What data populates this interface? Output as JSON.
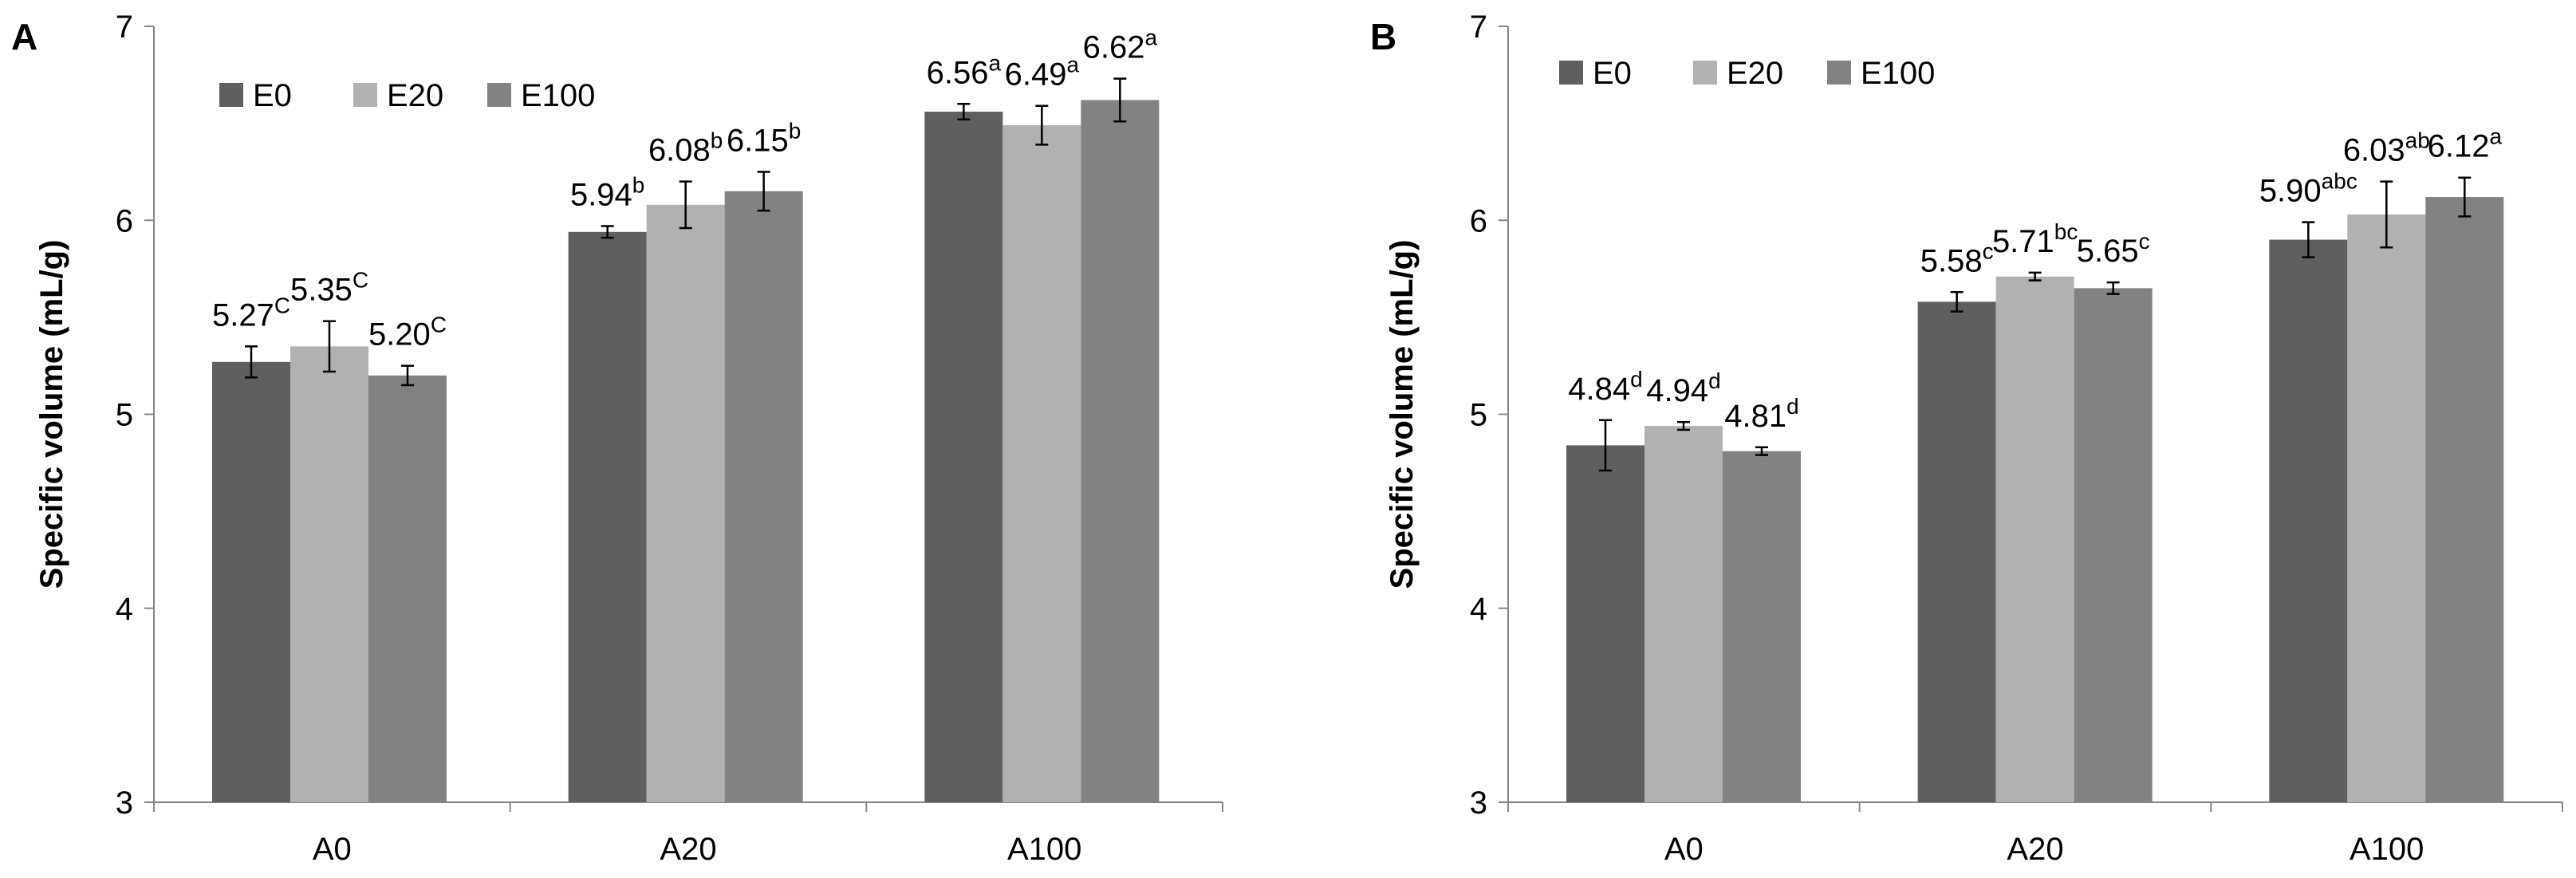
{
  "figure": {
    "y_axis_title": "Specific volume (mL/g)"
  },
  "chart_data": [
    {
      "type": "bar",
      "panel": "A",
      "title": "",
      "xlabel": "",
      "ylabel": "Specific volume (mL/g)",
      "ylim": [
        3,
        7
      ],
      "yticks": [
        3,
        4,
        5,
        6,
        7
      ],
      "legend_position": "top-left",
      "categories": [
        "A0",
        "A20",
        "A100"
      ],
      "series": [
        {
          "name": "E0",
          "color": "#5f5f5f",
          "values": [
            5.27,
            5.94,
            6.56
          ],
          "errors": [
            0.08,
            0.03,
            0.04
          ],
          "labels": [
            "5.27",
            "5.94",
            "6.56"
          ],
          "letters": [
            "C",
            "b",
            "a"
          ]
        },
        {
          "name": "E20",
          "color": "#b1b1b1",
          "values": [
            5.35,
            6.08,
            6.49
          ],
          "errors": [
            0.13,
            0.12,
            0.1
          ],
          "labels": [
            "5.35",
            "6.08",
            "6.49"
          ],
          "letters": [
            "C",
            "b",
            "a"
          ]
        },
        {
          "name": "E100",
          "color": "#828282",
          "values": [
            5.2,
            6.15,
            6.62
          ],
          "errors": [
            0.05,
            0.1,
            0.11
          ],
          "labels": [
            "5.20",
            "6.15",
            "6.62"
          ],
          "letters": [
            "C",
            "b",
            "a"
          ]
        }
      ]
    },
    {
      "type": "bar",
      "panel": "B",
      "title": "",
      "xlabel": "",
      "ylabel": "Specific volume (mL/g)",
      "ylim": [
        3,
        7
      ],
      "yticks": [
        3,
        4,
        5,
        6,
        7
      ],
      "legend_position": "top-left",
      "categories": [
        "A0",
        "A20",
        "A100"
      ],
      "series": [
        {
          "name": "E0",
          "color": "#5f5f5f",
          "values": [
            4.84,
            5.58,
            5.9
          ],
          "errors": [
            0.13,
            0.05,
            0.09
          ],
          "labels": [
            "4.84",
            "5.58",
            "5.90"
          ],
          "letters": [
            "d",
            "c",
            "abc"
          ]
        },
        {
          "name": "E20",
          "color": "#b1b1b1",
          "values": [
            4.94,
            5.71,
            6.03
          ],
          "errors": [
            0.02,
            0.02,
            0.17
          ],
          "labels": [
            "4.94",
            "5.71",
            "6.03"
          ],
          "letters": [
            "d",
            "bc",
            "ab"
          ]
        },
        {
          "name": "E100",
          "color": "#828282",
          "values": [
            4.81,
            5.65,
            6.12
          ],
          "errors": [
            0.02,
            0.03,
            0.1
          ],
          "labels": [
            "4.81",
            "5.65",
            "6.12"
          ],
          "letters": [
            "d",
            "c",
            "a"
          ]
        }
      ]
    }
  ]
}
